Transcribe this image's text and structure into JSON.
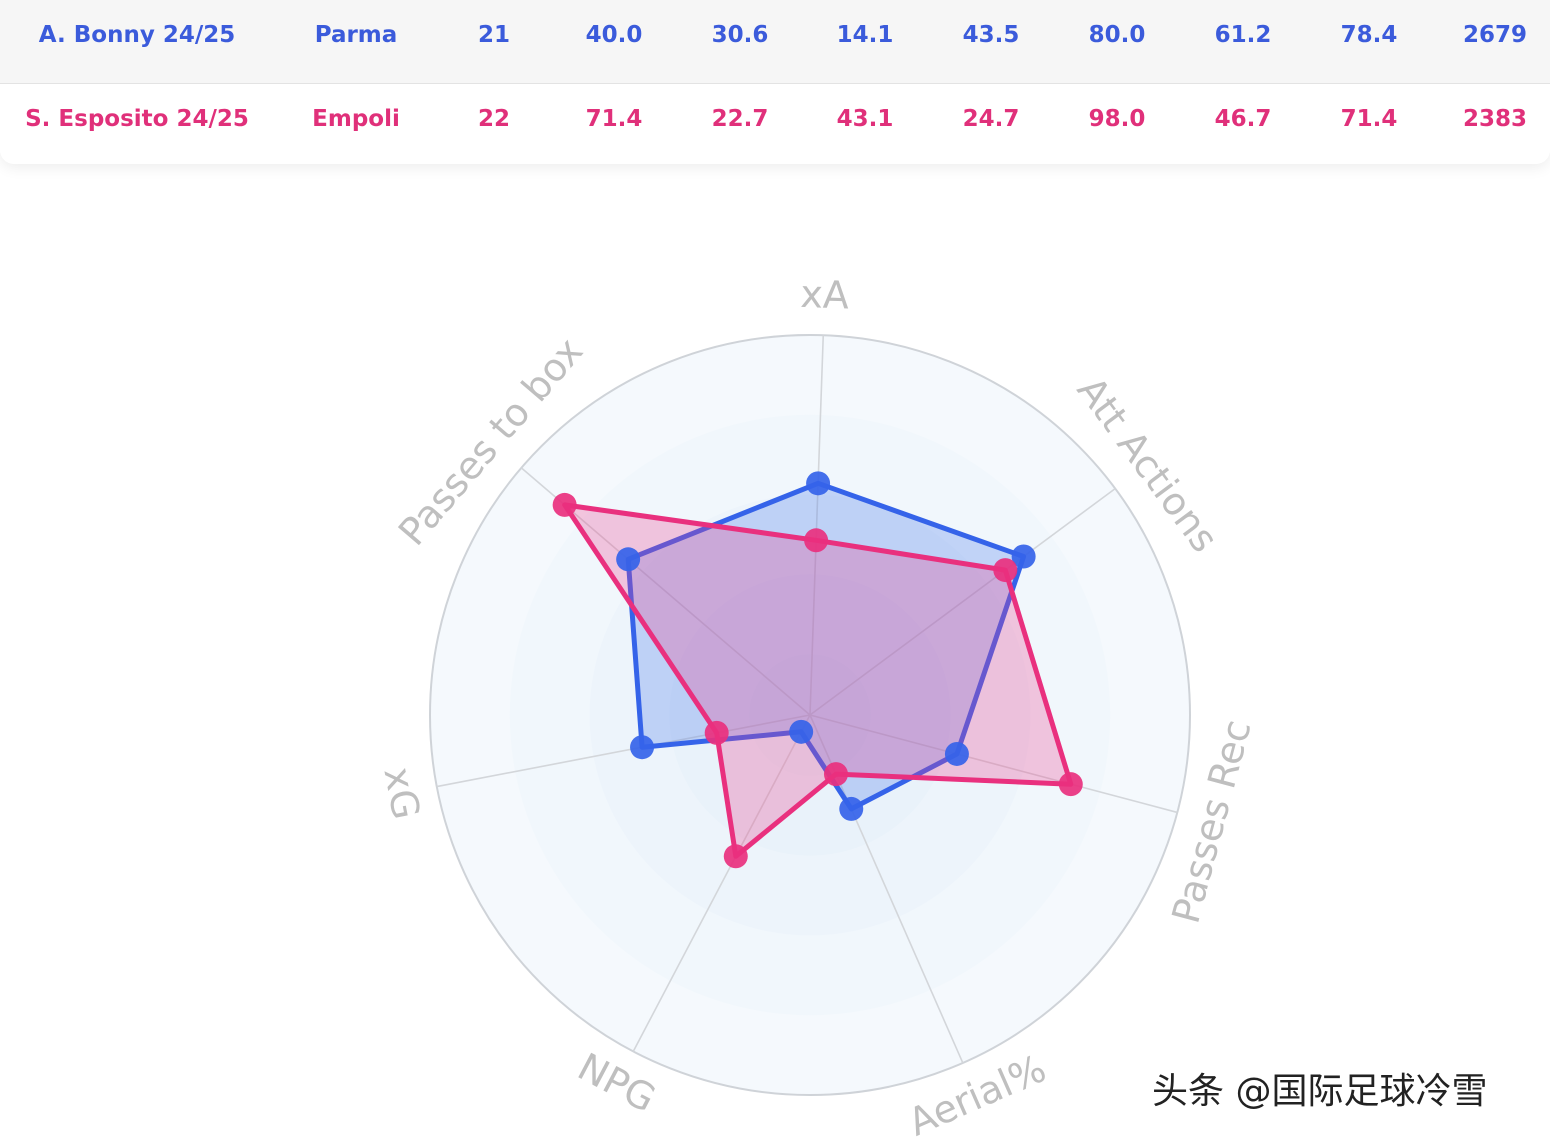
{
  "table": {
    "rows": [
      {
        "player": "A. Bonny 24/25",
        "team": "Parma",
        "cells": [
          "21",
          "40.0",
          "30.6",
          "14.1",
          "43.5",
          "80.0",
          "61.2",
          "78.4",
          "2679"
        ],
        "color": "#3b5bdb"
      },
      {
        "player": "S. Esposito 24/25",
        "team": "Empoli",
        "cells": [
          "22",
          "71.4",
          "22.7",
          "43.1",
          "24.7",
          "98.0",
          "46.7",
          "71.4",
          "2383"
        ],
        "color": "#e0307a"
      }
    ]
  },
  "chart_data": {
    "type": "radar",
    "axes": [
      "xA",
      "Att Actions",
      "Passes Rec",
      "Aerial%",
      "NPG",
      "xG",
      "Passes to box"
    ],
    "range": [
      0,
      100
    ],
    "grid": true,
    "series": [
      {
        "name": "A. Bonny 24/25",
        "color": "#3563e9",
        "fill": "rgba(70,120,235,0.28)",
        "values": [
          61,
          70,
          40,
          27,
          5,
          45,
          63
        ]
      },
      {
        "name": "S. Esposito 24/25",
        "color": "#e9307e",
        "fill": "rgba(235,60,140,0.28)",
        "values": [
          46,
          64,
          71,
          17,
          42,
          25,
          85
        ]
      }
    ]
  },
  "watermark": "头条 @国际足球冷雪"
}
